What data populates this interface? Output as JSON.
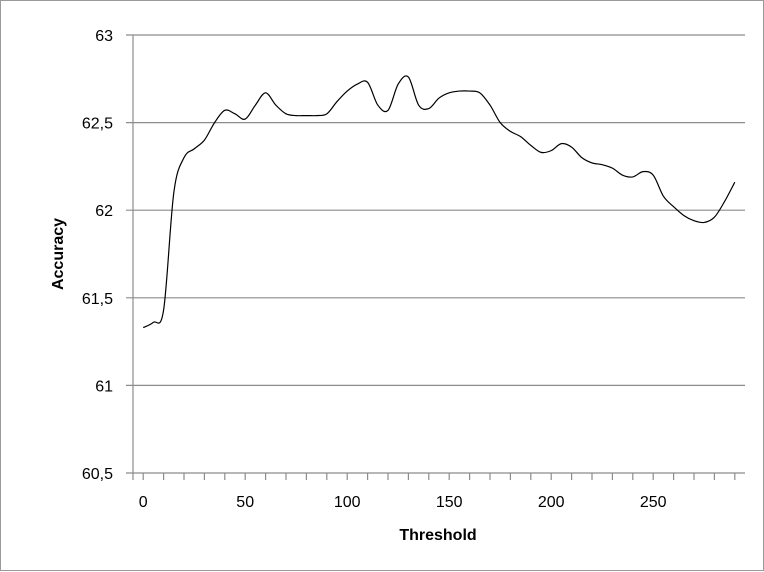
{
  "chart_data": {
    "type": "line",
    "title": "",
    "xlabel": "Threshold",
    "ylabel": "Accuracy",
    "xlim": [
      -5,
      295
    ],
    "ylim": [
      60.5,
      63
    ],
    "x_ticks": [
      0,
      50,
      100,
      150,
      200,
      250
    ],
    "x_tick_labels": [
      "0",
      "50",
      "100",
      "150",
      "200",
      "250"
    ],
    "y_ticks": [
      60.5,
      61,
      61.5,
      62,
      62.5,
      63
    ],
    "y_tick_labels": [
      "60,5",
      "61",
      "61,5",
      "62",
      "62,5",
      "63"
    ],
    "grid": "horizontal",
    "legend": "none",
    "colors": {
      "line": "#000000",
      "grid": "#8c8c8c",
      "axis": "#8c8c8c",
      "frame": "#9a9a9a"
    },
    "series": [
      {
        "x": [
          0,
          5,
          10,
          15,
          20,
          25,
          30,
          35,
          40,
          45,
          50,
          55,
          60,
          65,
          70,
          75,
          80,
          85,
          90,
          95,
          100,
          105,
          110,
          115,
          120,
          125,
          130,
          135,
          140,
          145,
          150,
          155,
          160,
          165,
          170,
          175,
          180,
          185,
          190,
          195,
          200,
          205,
          210,
          215,
          220,
          225,
          230,
          235,
          240,
          245,
          250,
          255,
          260,
          265,
          270,
          275,
          280,
          285,
          290
        ],
        "y": [
          61.33,
          61.36,
          61.43,
          62.1,
          62.3,
          62.35,
          62.4,
          62.5,
          62.57,
          62.55,
          62.52,
          62.6,
          62.67,
          62.6,
          62.55,
          62.54,
          62.54,
          62.54,
          62.55,
          62.62,
          62.68,
          62.72,
          62.73,
          62.6,
          62.57,
          62.72,
          62.76,
          62.6,
          62.58,
          62.64,
          62.67,
          62.68,
          62.68,
          62.67,
          62.6,
          62.5,
          62.45,
          62.42,
          62.37,
          62.33,
          62.34,
          62.38,
          62.36,
          62.3,
          62.27,
          62.26,
          62.24,
          62.2,
          62.19,
          62.22,
          62.2,
          62.08,
          62.02,
          61.97,
          61.94,
          61.93,
          61.96,
          62.05,
          62.16
        ]
      }
    ]
  }
}
